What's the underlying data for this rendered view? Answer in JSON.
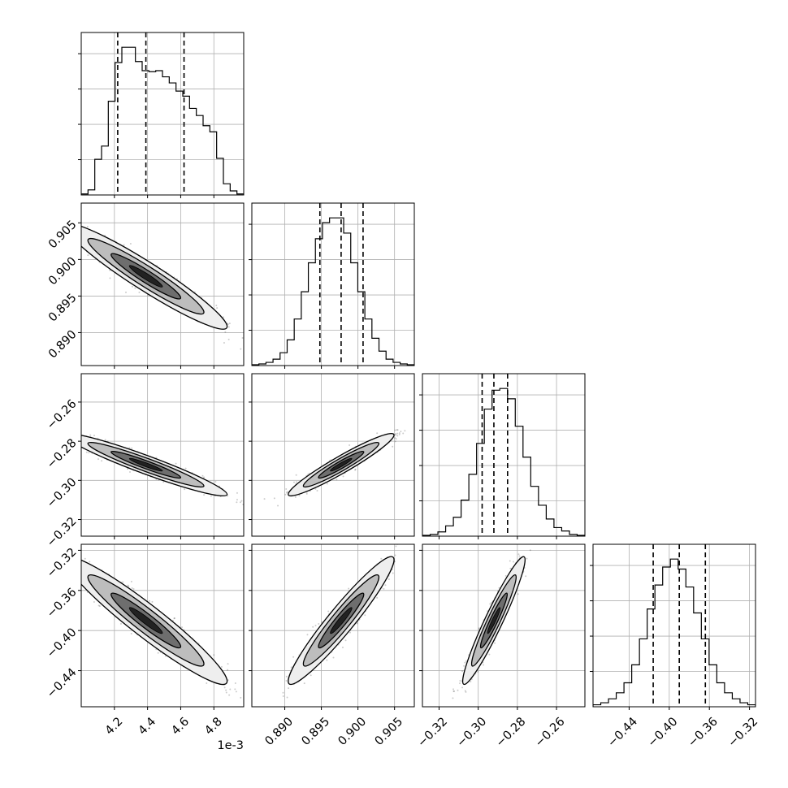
{
  "chart_data": {
    "type": "corner",
    "num_params": 4,
    "params": [
      {
        "range": [
          4.0,
          4.98
        ],
        "scale_label": "1e-3",
        "ticks": [
          4.2,
          4.4,
          4.6,
          4.8
        ],
        "tick_labels": [
          "4.2",
          "4.4",
          "4.6",
          "4.8"
        ],
        "quantiles": [
          4.22,
          4.39,
          4.62
        ]
      },
      {
        "range": [
          0.8855,
          0.9077
        ],
        "ticks": [
          0.89,
          0.895,
          0.9,
          0.905
        ],
        "tick_labels": [
          "0.890",
          "0.895",
          "0.900",
          "0.905"
        ],
        "quantiles": [
          0.8948,
          0.8977,
          0.9007
        ]
      },
      {
        "range": [
          -0.3285,
          -0.2455
        ],
        "ticks": [
          -0.32,
          -0.3,
          -0.28,
          -0.26
        ],
        "tick_labels": [
          "−0.32",
          "−0.30",
          "−0.28",
          "−0.26"
        ],
        "quantiles": [
          -0.298,
          -0.292,
          -0.285
        ]
      },
      {
        "range": [
          -0.476,
          -0.314
        ],
        "ticks": [
          -0.44,
          -0.4,
          -0.36,
          -0.32
        ],
        "tick_labels": [
          "−0.44",
          "−0.40",
          "−0.36",
          "−0.32"
        ],
        "quantiles": [
          -0.416,
          -0.39,
          -0.364
        ]
      }
    ],
    "histograms": [
      {
        "bin_counts": [
          1,
          5,
          35,
          48,
          92,
          130,
          145,
          145,
          131,
          122,
          121,
          122,
          116,
          110,
          102,
          97,
          85,
          78,
          68,
          62,
          36,
          11,
          4,
          1
        ]
      },
      {
        "bin_counts": [
          1,
          2,
          4,
          8,
          16,
          32,
          58,
          92,
          128,
          158,
          178,
          184,
          184,
          165,
          128,
          92,
          58,
          34,
          18,
          8,
          4,
          2,
          1
        ]
      },
      {
        "bin_counts": [
          1,
          2,
          5,
          12,
          22,
          42,
          72,
          108,
          148,
          170,
          172,
          160,
          128,
          92,
          58,
          36,
          20,
          10,
          6,
          2,
          1
        ]
      },
      {
        "bin_counts": [
          2,
          4,
          8,
          14,
          24,
          42,
          68,
          98,
          122,
          140,
          148,
          138,
          120,
          94,
          68,
          42,
          24,
          14,
          8,
          4,
          2
        ]
      }
    ],
    "correlations": {
      "1-0": -0.95,
      "2-0": -0.95,
      "2-1": 0.95,
      "3-0": -0.95,
      "3-1": 0.95,
      "3-2": 0.95
    },
    "grid": true
  }
}
